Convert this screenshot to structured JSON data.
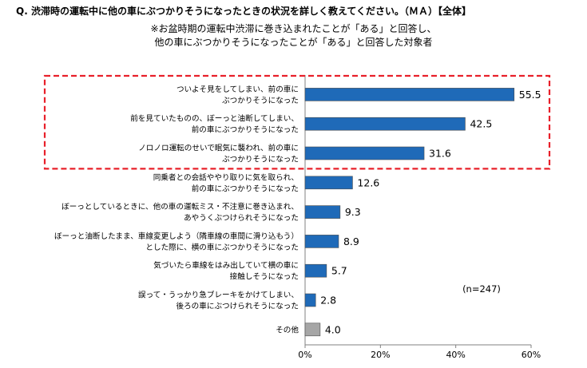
{
  "question": "Q. 渋滞時の運転中に他の車にぶつかりそうになったときの状況を詳しく教えてください。（ＭＡ）【全体】",
  "note_line1": "※お盆時期の運転中渋滞に巻き込まれたことが「ある」と回答し、",
  "note_line2": "他の車にぶつかりそうになったことが「ある」と回答した対象者",
  "chart_data": {
    "type": "bar",
    "orientation": "horizontal",
    "categories": [
      [
        "ついよそ見をしてしまい、前の車に",
        "ぶつかりそうになった"
      ],
      [
        "前を見ていたものの、ぼーっと油断してしまい、",
        "前の車にぶつかりそうになった"
      ],
      [
        "ノロノロ運転のせいで眠気に襲われ、前の車に",
        "ぶつかりそうになった"
      ],
      [
        "同乗者との会話ややり取りに気を取られ、",
        "前の車にぶつかりそうになった"
      ],
      [
        "ぼーっとしているときに、他の車の運転ミス・不注意に巻き込まれ、",
        "あやうくぶつけられそうになった"
      ],
      [
        "ぼーっと油断したまま、車線変更しよう（隣車線の車間に滑り込もう）",
        "とした際に、横の車にぶつかりそうになった"
      ],
      [
        "気づいたら車線をはみ出していて横の車に",
        "接触しそうになった"
      ],
      [
        "誤って・うっかり急ブレーキをかけてしまい、",
        "後ろの車にぶつけられそうになった"
      ],
      [
        "その他"
      ]
    ],
    "values": [
      55.5,
      42.5,
      31.6,
      12.6,
      9.3,
      8.9,
      5.7,
      2.8,
      4.0
    ],
    "value_labels": [
      "55.5",
      "42.5",
      "31.6",
      "12.6",
      "9.3",
      "8.9",
      "5.7",
      "2.8",
      "4.0"
    ],
    "bar_colors": [
      "#1f6ab8",
      "#1f6ab8",
      "#1f6ab8",
      "#1f6ab8",
      "#1f6ab8",
      "#1f6ab8",
      "#1f6ab8",
      "#1f6ab8",
      "#a6a6a6"
    ],
    "highlight_color": "#e8202a",
    "highlight_count": 3,
    "xlim": [
      0,
      60
    ],
    "xticks": [
      0,
      20,
      40,
      60
    ],
    "xtick_labels": [
      "0%",
      "20%",
      "40%",
      "60%"
    ],
    "annotation": "(n=247)"
  }
}
